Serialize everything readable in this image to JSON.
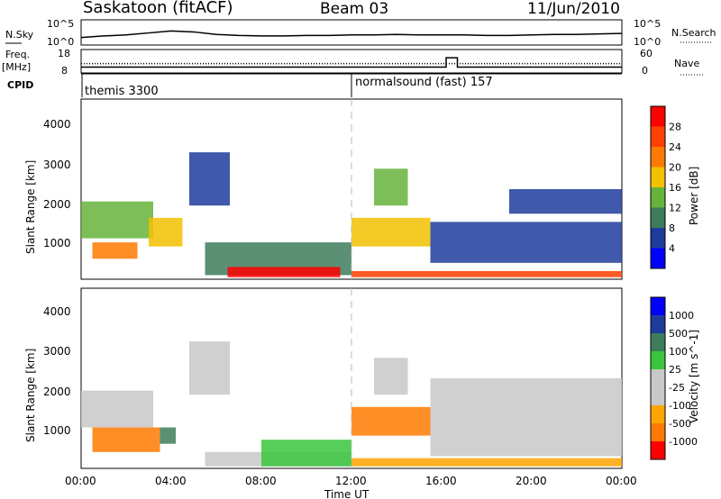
{
  "header": {
    "station": "Saskatoon (fitACF)",
    "beam": "Beam 03",
    "date": "11/Jun/2010"
  },
  "left_labels": {
    "nsky": "N.Sky",
    "freq": "Freq.",
    "mhz": "[MHz]",
    "cpid": "CPID"
  },
  "right_labels": {
    "nsearch": "N.Search",
    "nave": "Nave"
  },
  "cpid_entries": [
    {
      "label": "themis 3300",
      "start": "00:00"
    },
    {
      "label": "normalsound (fast) 157",
      "start": "12:00"
    }
  ],
  "colors": {
    "scale_power": [
      "#0000ff",
      "#1f3c9c",
      "#3e7d5c",
      "#66b33c",
      "#f2c200",
      "#ff7a00",
      "#ff4000",
      "#ff0000"
    ],
    "scale_velocity": [
      "#ff0000",
      "#ff7a00",
      "#ffa500",
      "#c8c8c8",
      "#c8c8c8",
      "#39c63d",
      "#3e7d5c",
      "#1f3c9c",
      "#0000ff"
    ]
  },
  "chart_data": [
    {
      "type": "line",
      "panel": "noise",
      "ylabel_left": "N.Sky",
      "ylabel_right": "N.Search",
      "yticks_left": [
        "10^5",
        "10^0"
      ],
      "yticks_right": [
        "10^5",
        "10^0"
      ],
      "x": [
        0,
        1,
        2,
        3,
        4,
        5,
        6,
        7,
        8,
        9,
        10,
        11,
        12,
        13,
        14,
        15,
        16,
        17,
        18,
        19,
        20,
        21,
        22,
        23,
        24
      ],
      "values": [
        1.5,
        1.8,
        2.0,
        2.4,
        2.8,
        2.6,
        2.1,
        1.9,
        1.8,
        1.8,
        1.9,
        1.9,
        2.0,
        2.0,
        2.1,
        2.0,
        2.0,
        2.0,
        1.9,
        1.9,
        2.0,
        2.1,
        2.1,
        2.2,
        2.3
      ],
      "ylim": [
        0,
        5
      ],
      "scale": "log"
    },
    {
      "type": "line",
      "panel": "frequency",
      "ylabel_left": "Freq. [MHz]",
      "ylabel_right": "Nave",
      "yticks_left": [
        "18",
        "8"
      ],
      "yticks_right": [
        "60",
        "0"
      ],
      "series": [
        {
          "x": [
            0,
            16.2,
            16.2,
            16.7,
            16.7,
            24
          ],
          "values": [
            10.5,
            10.5,
            14.5,
            14.5,
            10.5,
            10.5
          ]
        },
        {
          "x": [
            0,
            24
          ],
          "values": [
            12,
            12
          ]
        }
      ],
      "ylim": [
        8,
        18
      ]
    },
    {
      "type": "heatmap",
      "panel": "power",
      "ylabel": "Slant Range [km]",
      "zlabel": "Power [dB]",
      "yticks": [
        "1000",
        "2000",
        "3000",
        "4000"
      ],
      "ylim": [
        200,
        4600
      ],
      "colorbar_ticks": [
        "4",
        "8",
        "12",
        "16",
        "20",
        "24",
        "28"
      ],
      "echo_regions": [
        {
          "t0": 0.0,
          "t1": 3.2,
          "r0": 1200,
          "r1": 2100,
          "level": 3
        },
        {
          "t0": 0.5,
          "t1": 2.5,
          "r0": 700,
          "r1": 1100,
          "level": 5
        },
        {
          "t0": 3.0,
          "t1": 4.5,
          "r0": 1000,
          "r1": 1700,
          "level": 4
        },
        {
          "t0": 4.8,
          "t1": 6.6,
          "r0": 2000,
          "r1": 3300,
          "level": 1
        },
        {
          "t0": 5.5,
          "t1": 12.0,
          "r0": 300,
          "r1": 1100,
          "level": 2
        },
        {
          "t0": 6.5,
          "t1": 11.5,
          "r0": 250,
          "r1": 500,
          "level": 7
        },
        {
          "t0": 12.0,
          "t1": 15.5,
          "r0": 1000,
          "r1": 1700,
          "level": 4
        },
        {
          "t0": 12.0,
          "t1": 24.0,
          "r0": 250,
          "r1": 400,
          "level": 6
        },
        {
          "t0": 13.0,
          "t1": 14.5,
          "r0": 2000,
          "r1": 2900,
          "level": 3
        },
        {
          "t0": 15.5,
          "t1": 24.0,
          "r0": 600,
          "r1": 1600,
          "level": 1
        },
        {
          "t0": 19.0,
          "t1": 24.0,
          "r0": 1800,
          "r1": 2400,
          "level": 1
        }
      ]
    },
    {
      "type": "heatmap",
      "panel": "velocity",
      "xlabel": "Time UT",
      "ylabel": "Slant Range [km]",
      "zlabel": "Velocity [m s^-1]",
      "yticks": [
        "1000",
        "2000",
        "3000",
        "4000"
      ],
      "ylim": [
        200,
        4600
      ],
      "xticks": [
        "00:00",
        "04:00",
        "08:00",
        "12:00",
        "16:00",
        "20:00",
        "00:00"
      ],
      "colorbar_ticks": [
        "-1000",
        "-500",
        "-100",
        "-25",
        "25",
        "100",
        "500",
        "1000"
      ],
      "echo_regions": [
        {
          "t0": 0.0,
          "t1": 3.2,
          "r0": 1200,
          "r1": 2100,
          "level": 3
        },
        {
          "t0": 0.5,
          "t1": 3.5,
          "r0": 600,
          "r1": 1200,
          "level": 1
        },
        {
          "t0": 4.8,
          "t1": 6.6,
          "r0": 2000,
          "r1": 3300,
          "level": 3
        },
        {
          "t0": 3.5,
          "t1": 4.2,
          "r0": 800,
          "r1": 1200,
          "level": 6
        },
        {
          "t0": 5.5,
          "t1": 12.0,
          "r0": 250,
          "r1": 600,
          "level": 3
        },
        {
          "t0": 8.0,
          "t1": 12.0,
          "r0": 250,
          "r1": 900,
          "level": 5
        },
        {
          "t0": 12.0,
          "t1": 15.5,
          "r0": 1000,
          "r1": 1700,
          "level": 1
        },
        {
          "t0": 13.0,
          "t1": 14.5,
          "r0": 2000,
          "r1": 2900,
          "level": 3
        },
        {
          "t0": 15.5,
          "t1": 24.0,
          "r0": 500,
          "r1": 2400,
          "level": 4
        },
        {
          "t0": 12.0,
          "t1": 24.0,
          "r0": 250,
          "r1": 450,
          "level": 2
        }
      ]
    }
  ]
}
